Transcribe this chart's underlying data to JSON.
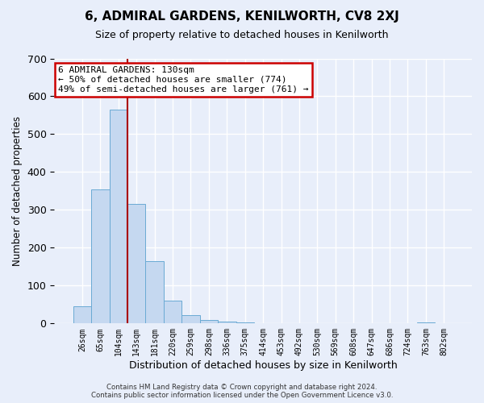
{
  "title": "6, ADMIRAL GARDENS, KENILWORTH, CV8 2XJ",
  "subtitle": "Size of property relative to detached houses in Kenilworth",
  "xlabel": "Distribution of detached houses by size in Kenilworth",
  "ylabel": "Number of detached properties",
  "bar_values": [
    45,
    355,
    565,
    315,
    165,
    60,
    22,
    10,
    5,
    3,
    1,
    0,
    0,
    0,
    0,
    0,
    0,
    0,
    0,
    2,
    0
  ],
  "bar_labels": [
    "26sqm",
    "65sqm",
    "104sqm",
    "143sqm",
    "181sqm",
    "220sqm",
    "259sqm",
    "298sqm",
    "336sqm",
    "375sqm",
    "414sqm",
    "453sqm",
    "492sqm",
    "530sqm",
    "569sqm",
    "608sqm",
    "647sqm",
    "686sqm",
    "724sqm",
    "763sqm",
    "802sqm"
  ],
  "ylim": [
    0,
    700
  ],
  "yticks": [
    0,
    100,
    200,
    300,
    400,
    500,
    600,
    700
  ],
  "bar_color": "#c5d8f0",
  "bar_edge_color": "#6aaad4",
  "vline_x": 2.5,
  "vline_color": "#aa0000",
  "annotation_text": "6 ADMIRAL GARDENS: 130sqm\n← 50% of detached houses are smaller (774)\n49% of semi-detached houses are larger (761) →",
  "annotation_box_color": "#ffffff",
  "annotation_box_edge_color": "#cc0000",
  "footer_line1": "Contains HM Land Registry data © Crown copyright and database right 2024.",
  "footer_line2": "Contains public sector information licensed under the Open Government Licence v3.0.",
  "background_color": "#e8eefa",
  "grid_color": "#ffffff"
}
